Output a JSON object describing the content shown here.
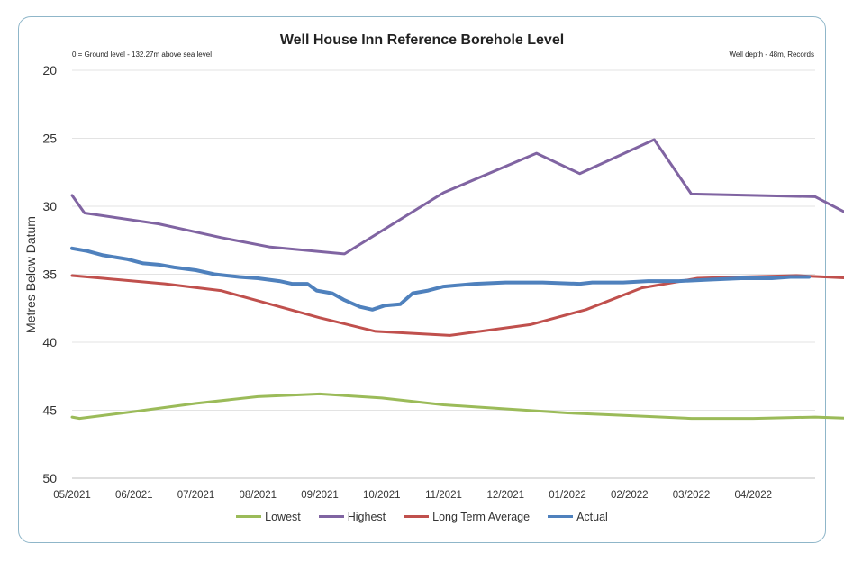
{
  "chart_data": {
    "type": "line",
    "title": "Well House Inn Reference Borehole Level",
    "note_left": "0 = Ground level - 132.27m above sea level",
    "note_right": "Well depth - 48m, Records",
    "ylabel": "Metres Below Datum",
    "xlabel": "",
    "ylim": [
      20,
      50
    ],
    "y_inverted": true,
    "y_ticks": [
      20,
      25,
      30,
      35,
      40,
      45,
      50
    ],
    "x_ticks": [
      "05/2021",
      "06/2021",
      "07/2021",
      "08/2021",
      "09/2021",
      "10/2021",
      "11/2021",
      "12/2021",
      "01/2022",
      "02/2022",
      "03/2022",
      "04/2022"
    ],
    "x_domain": [
      0,
      12
    ],
    "grid": true,
    "legend_position": "bottom",
    "series": [
      {
        "name": "Lowest",
        "color": "#9bbb59",
        "points": [
          [
            0.0,
            45.5
          ],
          [
            0.12,
            45.6
          ],
          [
            1.0,
            45.1
          ],
          [
            2.0,
            44.5
          ],
          [
            3.0,
            44.0
          ],
          [
            4.0,
            43.8
          ],
          [
            5.0,
            44.1
          ],
          [
            6.0,
            44.6
          ],
          [
            7.0,
            44.9
          ],
          [
            8.0,
            45.2
          ],
          [
            9.0,
            45.4
          ],
          [
            10.0,
            45.6
          ],
          [
            11.0,
            45.6
          ],
          [
            12.0,
            45.5
          ],
          [
            12.6,
            45.6
          ]
        ]
      },
      {
        "name": "Highest",
        "color": "#8064a2",
        "points": [
          [
            0.0,
            29.2
          ],
          [
            0.2,
            30.5
          ],
          [
            1.4,
            31.3
          ],
          [
            2.4,
            32.3
          ],
          [
            3.2,
            33.0
          ],
          [
            4.4,
            33.5
          ],
          [
            6.0,
            29.0
          ],
          [
            7.5,
            26.1
          ],
          [
            8.2,
            27.6
          ],
          [
            9.4,
            25.1
          ],
          [
            10.0,
            29.1
          ],
          [
            12.0,
            29.3
          ],
          [
            12.55,
            30.6
          ]
        ]
      },
      {
        "name": "Long Term Average",
        "color": "#c0504d",
        "points": [
          [
            0.0,
            35.1
          ],
          [
            0.5,
            35.3
          ],
          [
            1.5,
            35.7
          ],
          [
            2.4,
            36.2
          ],
          [
            3.2,
            37.2
          ],
          [
            4.0,
            38.2
          ],
          [
            4.9,
            39.2
          ],
          [
            6.1,
            39.5
          ],
          [
            7.4,
            38.7
          ],
          [
            8.3,
            37.6
          ],
          [
            9.2,
            36.0
          ],
          [
            10.1,
            35.3
          ],
          [
            10.8,
            35.2
          ],
          [
            11.7,
            35.1
          ],
          [
            12.6,
            35.3
          ]
        ]
      },
      {
        "name": "Actual",
        "color": "#4f81bd",
        "points": [
          [
            0.0,
            33.1
          ],
          [
            0.25,
            33.3
          ],
          [
            0.5,
            33.6
          ],
          [
            0.9,
            33.9
          ],
          [
            1.15,
            34.2
          ],
          [
            1.4,
            34.3
          ],
          [
            1.65,
            34.5
          ],
          [
            2.0,
            34.7
          ],
          [
            2.3,
            35.0
          ],
          [
            2.7,
            35.2
          ],
          [
            3.0,
            35.3
          ],
          [
            3.35,
            35.5
          ],
          [
            3.55,
            35.7
          ],
          [
            3.8,
            35.7
          ],
          [
            3.95,
            36.2
          ],
          [
            4.2,
            36.4
          ],
          [
            4.4,
            36.9
          ],
          [
            4.65,
            37.4
          ],
          [
            4.85,
            37.6
          ],
          [
            5.05,
            37.3
          ],
          [
            5.3,
            37.2
          ],
          [
            5.5,
            36.4
          ],
          [
            5.75,
            36.2
          ],
          [
            6.0,
            35.9
          ],
          [
            6.5,
            35.7
          ],
          [
            7.0,
            35.6
          ],
          [
            7.3,
            35.6
          ],
          [
            7.6,
            35.6
          ],
          [
            8.2,
            35.7
          ],
          [
            8.4,
            35.6
          ],
          [
            8.9,
            35.6
          ],
          [
            9.3,
            35.5
          ],
          [
            9.8,
            35.5
          ],
          [
            10.3,
            35.4
          ],
          [
            10.8,
            35.3
          ],
          [
            11.3,
            35.3
          ],
          [
            11.6,
            35.2
          ],
          [
            11.9,
            35.2
          ]
        ]
      }
    ]
  }
}
